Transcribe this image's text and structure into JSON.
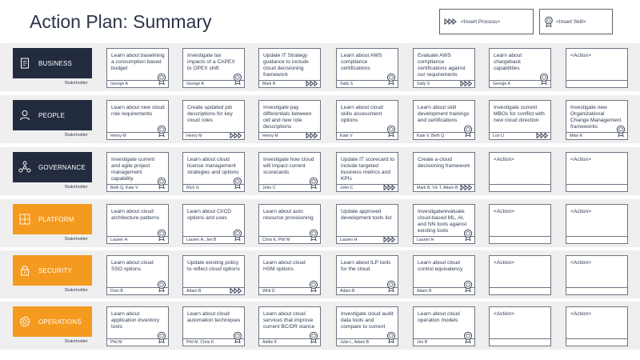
{
  "page": {
    "title": "Action Plan: Summary"
  },
  "legend": {
    "process": {
      "icon": "process-arrows-icon",
      "label": "<Insert Process>"
    },
    "skill": {
      "icon": "skill-badge-icon",
      "label": "<Insert Skill>"
    }
  },
  "colors": {
    "dark": "#232c3f",
    "orange": "#f49a1e",
    "band": "#efefef",
    "border": "#6d7484"
  },
  "rows": [
    {
      "name": "BUSINESS",
      "icon": "document-icon",
      "style": "dark",
      "stakeholder_label": "Stakeholder",
      "cards": [
        {
          "text": "Learn about baselining a consumption based budget",
          "owner": "George A",
          "marker": "skill"
        },
        {
          "text": "Investigate tax impacts of a CAPEX to OPEX shift",
          "owner": "George A",
          "marker": "skill"
        },
        {
          "text": "Update IT Strategy guidance to include cloud decisioning framework",
          "owner": "Mark B",
          "marker": "process"
        },
        {
          "text": "Learn about AWS compliance certifications",
          "owner": "Sally S",
          "marker": "skill"
        },
        {
          "text": "Evaluate AWS compliance certifications against our requirements",
          "owner": "Sally S",
          "marker": "process"
        },
        {
          "text": "Learn about chargeback capabilities",
          "owner": "George A",
          "marker": "skill"
        },
        {
          "text": "<Action>",
          "owner": "",
          "marker": ""
        }
      ]
    },
    {
      "name": "PEOPLE",
      "icon": "person-icon",
      "style": "dark",
      "stakeholder_label": "Stakeholder",
      "cards": [
        {
          "text": "Learn about new cloud role requirements",
          "owner": "Henry M",
          "marker": "skill"
        },
        {
          "text": "Create updated job descriptions for key cloud roles",
          "owner": "Henry M",
          "marker": "process"
        },
        {
          "text": "Investigate pay differentials between old and new role descriptions",
          "owner": "Henry M",
          "marker": "process"
        },
        {
          "text": "Learn about cloud skills assessment options",
          "owner": "Kate V",
          "marker": "skill"
        },
        {
          "text": "Learn about skill development trainings and certifications",
          "owner": "Kate V, Beth Q",
          "marker": "skill"
        },
        {
          "text": "Investigate current MBOs for conflict with new cloud direction",
          "owner": "Lori U",
          "marker": "process"
        },
        {
          "text": "Investigate new Organizational Change Management frameworks",
          "owner": "Mike R",
          "marker": "skill"
        }
      ]
    },
    {
      "name": "GOVERNANCE",
      "icon": "network-icon",
      "style": "dark",
      "stakeholder_label": "Stakeholder",
      "cards": [
        {
          "text": "Investigate current and agile project management capability",
          "owner": "Beth Q, Kate V",
          "marker": "skill"
        },
        {
          "text": "Learn about cloud license management strategies and options",
          "owner": "Rich G",
          "marker": "skill"
        },
        {
          "text": "Investigate how cloud will impact current scorecards",
          "owner": "John C",
          "marker": "skill"
        },
        {
          "text": "Update IT scorecard to include targeted business metrics and KPIs",
          "owner": "John C",
          "marker": "process"
        },
        {
          "text": "Create a cloud decisioning framework",
          "owner": "Mark B, Vic T, Adam B",
          "marker": "process"
        },
        {
          "text": "<Action>",
          "owner": "",
          "marker": ""
        },
        {
          "text": "<Action>",
          "owner": "",
          "marker": ""
        }
      ]
    },
    {
      "name": "PLATFORM",
      "icon": "platform-grid-icon",
      "style": "orange",
      "stakeholder_label": "Stakeholder",
      "cards": [
        {
          "text": "Learn about cloud architecture patterns",
          "owner": "Lauren H",
          "marker": "skill"
        },
        {
          "text": "Learn about CI/CD options and uses",
          "owner": "Lauren H, Jen B",
          "marker": "skill"
        },
        {
          "text": "Learn about auto resource provisioning",
          "owner": "Chris K, Phil M",
          "marker": "skill"
        },
        {
          "text": "Update approved development tools list",
          "owner": "Lauren H",
          "marker": "process"
        },
        {
          "text": "Investigate/evaluate cloud-based ML, AI, and NN tools against existing tools",
          "owner": "Lauren H",
          "marker": "skill"
        },
        {
          "text": "<Action>",
          "owner": "",
          "marker": ""
        },
        {
          "text": "<Action>",
          "owner": "",
          "marker": ""
        }
      ]
    },
    {
      "name": "SECURITY",
      "icon": "lock-icon",
      "style": "orange",
      "stakeholder_label": "Stakeholder",
      "cards": [
        {
          "text": "Learn about cloud SSO options",
          "owner": "Dom B",
          "marker": "skill"
        },
        {
          "text": "Update existing policy to reflect cloud options",
          "owner": "Adam B",
          "marker": "process"
        },
        {
          "text": "Learn about cloud HSM options",
          "owner": "Whit D",
          "marker": "skill"
        },
        {
          "text": "Learn about ILP tools for the cloud",
          "owner": "Adam B",
          "marker": "skill"
        },
        {
          "text": "Learn about cloud control equivalency",
          "owner": "Adam B",
          "marker": "skill"
        },
        {
          "text": "<Action>",
          "owner": "",
          "marker": ""
        },
        {
          "text": "<Action>",
          "owner": "",
          "marker": ""
        }
      ]
    },
    {
      "name": "OPERATIONS",
      "icon": "gear-icon",
      "style": "orange",
      "stakeholder_label": "Stakeholder",
      "cards": [
        {
          "text": "Learn about application inventory tools",
          "owner": "Phil M",
          "marker": "skill"
        },
        {
          "text": "Learn about cloud automation techniques",
          "owner": "Phil M, Chris K",
          "marker": "skill"
        },
        {
          "text": "Learn about cloud services that improve current BC/DR stance",
          "owner": "Addie K",
          "marker": "skill"
        },
        {
          "text": "Investigate cloud audit data tools and compare to current",
          "owner": "Julie L, Adam B",
          "marker": "skill"
        },
        {
          "text": "Learn about cloud operation models",
          "owner": "Jen B",
          "marker": "skill"
        },
        {
          "text": "<Action>",
          "owner": "",
          "marker": ""
        },
        {
          "text": "<Action>",
          "owner": "",
          "marker": ""
        }
      ]
    }
  ]
}
